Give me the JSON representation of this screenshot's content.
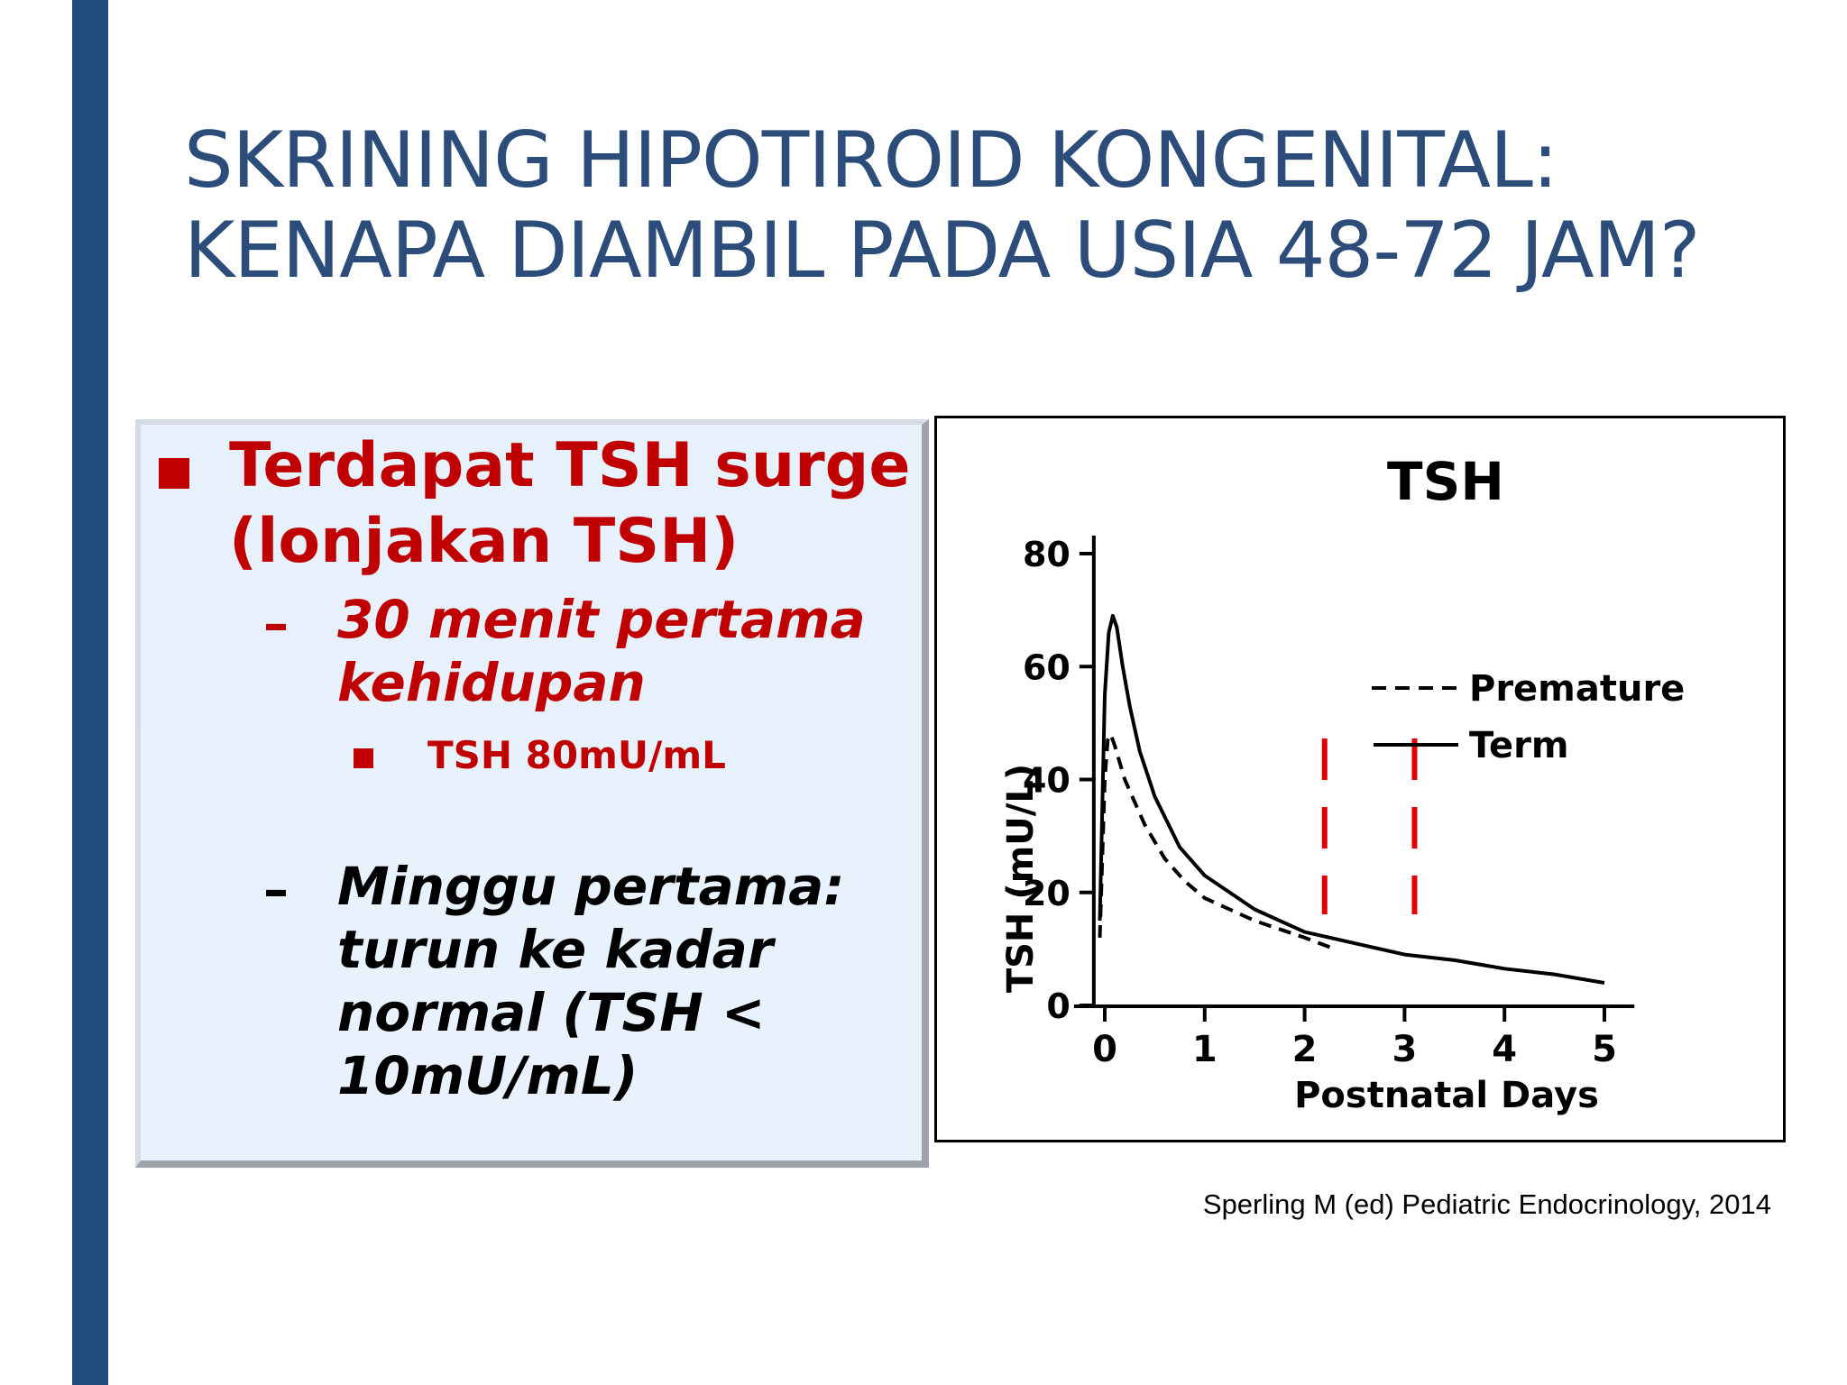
{
  "slide": {
    "title_line1": "SKRINING HIPOTIROID KONGENITAL:",
    "title_line2": "KENAPA DIAMBIL PADA USIA 48-72 JAM?",
    "bullets": {
      "main": "Terdapat TSH surge (lonjakan TSH)",
      "dash1": "–",
      "sub1": "30 menit pertama kehidupan",
      "subsub1": "TSH 80mU/mL",
      "dash2": "–",
      "sub2": "Minggu pertama: turun ke kadar normal (TSH < 10mU/mL)"
    },
    "citation": "Sperling M (ed) Pediatric Endocrinology, 2014"
  },
  "colors": {
    "title": "#2c4d7a",
    "sidebar": "#214c7b",
    "bullet_red": "#c00000",
    "marker_red": "#e00000"
  },
  "chart_data": {
    "type": "line",
    "title": "TSH",
    "xlabel": "Postnatal Days",
    "ylabel": "TSH (mU/L)",
    "xlim": [
      -0.2,
      5.3
    ],
    "ylim": [
      0,
      80
    ],
    "xticks": [
      0,
      1,
      2,
      3,
      4,
      5
    ],
    "yticks": [
      0,
      20,
      40,
      60,
      80
    ],
    "grid": false,
    "legend_position": "upper-right",
    "series": [
      {
        "name": "Premature",
        "style": "dashed",
        "x": [
          -0.05,
          0.0,
          0.03,
          0.06,
          0.1,
          0.15,
          0.2,
          0.3,
          0.4,
          0.6,
          0.8,
          1.0,
          1.5,
          2.0,
          2.3
        ],
        "y": [
          12,
          40,
          47,
          48,
          46,
          43,
          40,
          36,
          32,
          26,
          22,
          19,
          15,
          12,
          10
        ]
      },
      {
        "name": "Term",
        "style": "solid",
        "x": [
          -0.05,
          0.0,
          0.04,
          0.08,
          0.12,
          0.18,
          0.25,
          0.35,
          0.5,
          0.75,
          1.0,
          1.5,
          2.0,
          2.5,
          3.0,
          3.5,
          4.0,
          4.5,
          5.0
        ],
        "y": [
          15,
          55,
          66,
          69,
          67,
          60,
          53,
          45,
          37,
          28,
          23,
          17,
          13,
          11,
          9,
          8,
          6.5,
          5.5,
          4
        ]
      }
    ],
    "annotations": [
      {
        "type": "vertical-dashed-marker",
        "x": 2.2,
        "color": "red"
      },
      {
        "type": "vertical-dashed-marker",
        "x": 3.1,
        "color": "red"
      }
    ]
  }
}
